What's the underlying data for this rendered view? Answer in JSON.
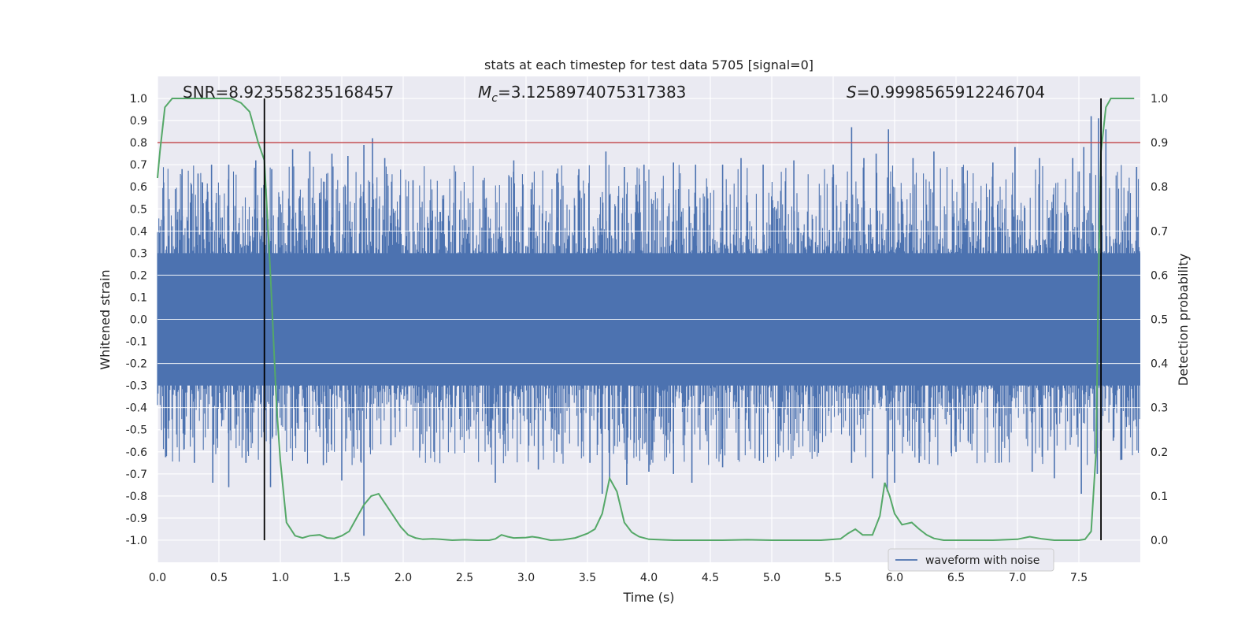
{
  "chart_data": {
    "type": "line",
    "title": "stats at each timestep for test data 5705 [signal=0]",
    "xlabel": "Time (s)",
    "ylabel": "Whitened strain",
    "y2label": "Detection probability",
    "xlim": [
      0.0,
      8.0
    ],
    "ylim": [
      -1.1,
      1.1
    ],
    "y2lim": [
      -0.05,
      1.05
    ],
    "xticks": [
      "0.0",
      "0.5",
      "1.0",
      "1.5",
      "2.0",
      "2.5",
      "3.0",
      "3.5",
      "4.0",
      "4.5",
      "5.0",
      "5.5",
      "6.0",
      "6.5",
      "7.0",
      "7.5"
    ],
    "yticks": [
      "1.0",
      "0.9",
      "0.8",
      "0.7",
      "0.6",
      "0.5",
      "0.4",
      "0.3",
      "0.2",
      "0.1",
      "0.0",
      "-0.1",
      "-0.2",
      "-0.3",
      "-0.4",
      "-0.5",
      "-0.6",
      "-0.7",
      "-0.8",
      "-0.9",
      "-1.0"
    ],
    "y2ticks": [
      "1.0",
      "0.9",
      "0.8",
      "0.7",
      "0.6",
      "0.5",
      "0.4",
      "0.3",
      "0.2",
      "0.1",
      "0.0"
    ],
    "grid": true,
    "legend_position": "bottom-right",
    "annotations": {
      "snr": "SNR=8.923558235168457",
      "mc_sym": "M",
      "mc_sub": "c",
      "mc_val": "=3.1258974075317383",
      "s_sym": "S",
      "s_val": "=0.9998565912246704"
    },
    "threshold": {
      "value": 0.9,
      "axis": "y2",
      "color": "#c44e52"
    },
    "vlines": [
      0.87,
      7.68
    ],
    "series": [
      {
        "name": "waveform with noise",
        "axis": "y",
        "color": "#4c72b0",
        "description_of_shape": "dense noise",
        "spikes": [
          [
            0.05,
            0.62
          ],
          [
            0.2,
            0.68
          ],
          [
            0.33,
            0.66
          ],
          [
            0.44,
            0.7
          ],
          [
            0.58,
            0.7
          ],
          [
            0.8,
            0.72
          ],
          [
            0.93,
            0.68
          ],
          [
            1.1,
            0.77
          ],
          [
            1.24,
            0.76
          ],
          [
            1.42,
            0.75
          ],
          [
            1.55,
            0.74
          ],
          [
            1.68,
            0.79
          ],
          [
            1.75,
            0.82
          ],
          [
            1.85,
            0.73
          ],
          [
            2.08,
            0.63
          ],
          [
            2.65,
            0.63
          ],
          [
            2.9,
            0.72
          ],
          [
            3.05,
            0.62
          ],
          [
            3.25,
            0.66
          ],
          [
            3.43,
            0.68
          ],
          [
            3.65,
            0.76
          ],
          [
            3.8,
            0.69
          ],
          [
            3.96,
            0.7
          ],
          [
            4.2,
            0.71
          ],
          [
            4.38,
            0.7
          ],
          [
            4.6,
            0.7
          ],
          [
            4.75,
            0.73
          ],
          [
            4.93,
            0.7
          ],
          [
            5.18,
            0.72
          ],
          [
            5.5,
            0.7
          ],
          [
            5.65,
            0.87
          ],
          [
            5.75,
            0.73
          ],
          [
            5.85,
            0.75
          ],
          [
            5.95,
            0.86
          ],
          [
            6.15,
            0.73
          ],
          [
            6.32,
            0.76
          ],
          [
            6.55,
            0.69
          ],
          [
            6.8,
            0.71
          ],
          [
            6.98,
            0.78
          ],
          [
            7.18,
            0.73
          ],
          [
            7.45,
            0.73
          ],
          [
            7.54,
            0.78
          ],
          [
            7.6,
            0.92
          ],
          [
            7.66,
            0.91
          ],
          [
            7.72,
            0.86
          ],
          [
            7.97,
            0.69
          ]
        ],
        "dips": [
          [
            0.3,
            -0.65
          ],
          [
            0.45,
            -0.74
          ],
          [
            0.58,
            -0.76
          ],
          [
            0.72,
            -0.65
          ],
          [
            0.92,
            -0.76
          ],
          [
            1.2,
            -0.6
          ],
          [
            1.35,
            -0.66
          ],
          [
            1.5,
            -0.73
          ],
          [
            1.68,
            -0.98
          ],
          [
            1.9,
            -0.57
          ],
          [
            2.25,
            -0.6
          ],
          [
            2.75,
            -0.74
          ],
          [
            3.1,
            -0.68
          ],
          [
            3.25,
            -0.6
          ],
          [
            3.52,
            -0.65
          ],
          [
            3.62,
            -0.79
          ],
          [
            3.68,
            -0.73
          ],
          [
            3.82,
            -0.75
          ],
          [
            4.0,
            -0.69
          ],
          [
            4.2,
            -0.7
          ],
          [
            4.35,
            -0.74
          ],
          [
            4.6,
            -0.67
          ],
          [
            4.9,
            -0.64
          ],
          [
            5.35,
            -0.6
          ],
          [
            5.65,
            -0.65
          ],
          [
            5.82,
            -0.72
          ],
          [
            5.94,
            -0.78
          ],
          [
            6.0,
            -0.74
          ],
          [
            6.2,
            -0.65
          ],
          [
            6.5,
            -0.6
          ],
          [
            6.85,
            -0.65
          ],
          [
            7.12,
            -0.69
          ],
          [
            7.3,
            -0.72
          ],
          [
            7.52,
            -0.79
          ],
          [
            7.65,
            -0.7
          ],
          [
            7.78,
            -0.55
          ]
        ]
      },
      {
        "name": "",
        "axis": "y2",
        "color": "#55a868",
        "x": [
          0.0,
          0.02,
          0.06,
          0.12,
          0.2,
          0.3,
          0.5,
          0.6,
          0.68,
          0.75,
          0.82,
          0.87,
          0.92,
          0.97,
          1.0,
          1.05,
          1.12,
          1.18,
          1.24,
          1.32,
          1.38,
          1.44,
          1.5,
          1.56,
          1.62,
          1.68,
          1.74,
          1.8,
          1.86,
          1.92,
          1.98,
          2.04,
          2.1,
          2.16,
          2.24,
          2.3,
          2.4,
          2.5,
          2.6,
          2.7,
          2.75,
          2.8,
          2.85,
          2.9,
          3.0,
          3.05,
          3.1,
          3.2,
          3.3,
          3.4,
          3.5,
          3.56,
          3.62,
          3.68,
          3.74,
          3.8,
          3.86,
          3.92,
          4.0,
          4.2,
          4.4,
          4.6,
          4.8,
          5.0,
          5.2,
          5.4,
          5.56,
          5.62,
          5.68,
          5.74,
          5.82,
          5.88,
          5.92,
          5.96,
          6.0,
          6.06,
          6.14,
          6.2,
          6.26,
          6.32,
          6.4,
          6.6,
          6.8,
          7.0,
          7.1,
          7.2,
          7.3,
          7.4,
          7.5,
          7.55,
          7.6,
          7.64,
          7.66,
          7.68,
          7.72,
          7.76,
          7.82,
          7.9,
          7.95
        ],
        "values": [
          0.82,
          0.88,
          0.98,
          1.0,
          1.0,
          1.0,
          1.0,
          1.0,
          0.99,
          0.97,
          0.9,
          0.86,
          0.6,
          0.3,
          0.18,
          0.04,
          0.01,
          0.005,
          0.01,
          0.012,
          0.005,
          0.004,
          0.01,
          0.02,
          0.05,
          0.08,
          0.1,
          0.105,
          0.08,
          0.055,
          0.03,
          0.012,
          0.005,
          0.002,
          0.003,
          0.002,
          0.0,
          0.001,
          0.0,
          0.0,
          0.003,
          0.012,
          0.008,
          0.005,
          0.006,
          0.008,
          0.006,
          0.0,
          0.001,
          0.005,
          0.015,
          0.025,
          0.06,
          0.14,
          0.11,
          0.04,
          0.018,
          0.008,
          0.002,
          0.0,
          0.0,
          0.0,
          0.001,
          0.0,
          0.0,
          0.0,
          0.003,
          0.015,
          0.025,
          0.012,
          0.012,
          0.055,
          0.13,
          0.1,
          0.06,
          0.035,
          0.04,
          0.025,
          0.012,
          0.004,
          0.0,
          0.0,
          0.0,
          0.002,
          0.008,
          0.003,
          0.0,
          0.0,
          0.0,
          0.002,
          0.02,
          0.2,
          0.6,
          0.88,
          0.98,
          1.0,
          1.0,
          1.0,
          1.0
        ]
      }
    ]
  }
}
